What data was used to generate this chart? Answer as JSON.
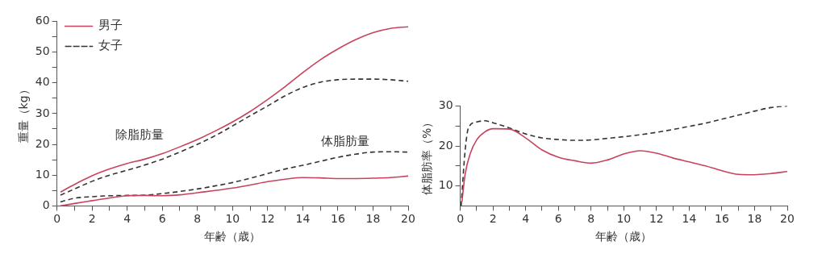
{
  "chart_data": [
    {
      "type": "line",
      "xlabel": "年齢（歳）",
      "ylabel": "重量（kg）",
      "xlim": [
        0,
        20
      ],
      "ylim": [
        0,
        60
      ],
      "xticks": [
        0,
        {
          "value": 1,
          "label": null
        },
        2,
        {
          "value": 3,
          "label": null
        },
        4,
        {
          "value": 5,
          "label": null
        },
        6,
        {
          "value": 7,
          "label": null
        },
        8,
        {
          "value": 9,
          "label": null
        },
        10,
        {
          "value": 11,
          "label": null
        },
        12,
        {
          "value": 13,
          "label": null
        },
        14,
        {
          "value": 15,
          "label": null
        },
        16,
        {
          "value": 17,
          "label": null
        },
        18,
        {
          "value": 19,
          "label": null
        },
        20
      ],
      "yticks": [
        0,
        {
          "value": 5,
          "label": null
        },
        10,
        {
          "value": 15,
          "label": null
        },
        20,
        {
          "value": 25,
          "label": null
        },
        30,
        {
          "value": 35,
          "label": null
        },
        40,
        {
          "value": 45,
          "label": null
        },
        50,
        {
          "value": 55,
          "label": null
        },
        60
      ],
      "grid": false,
      "legend": "top left",
      "marker": "none",
      "x": [
        0.2,
        1,
        2,
        3,
        4,
        5,
        6,
        7,
        8,
        9,
        10,
        11,
        12,
        13,
        14,
        15,
        16,
        17,
        18,
        19,
        20
      ],
      "series": [
        {
          "name": "男子",
          "color": "#c8435c",
          "line_style": "solid",
          "values": [
            4.5,
            7,
            9.8,
            12,
            13.8,
            15.2,
            17,
            19.2,
            21.6,
            24.3,
            27.3,
            30.7,
            34.6,
            38.8,
            43.3,
            47.5,
            51,
            54,
            56.3,
            57.7,
            58.2
          ]
        },
        {
          "name": "女子",
          "color": "#333333",
          "line_style": "dashed",
          "values": [
            3.5,
            5.5,
            8,
            10,
            11.6,
            13.3,
            15.2,
            17.5,
            20,
            22.8,
            26,
            29.3,
            32.5,
            35.8,
            38.5,
            40.2,
            41,
            41.2,
            41.2,
            41,
            40.5
          ]
        },
        {
          "color": "#c8435c",
          "line_style": "solid",
          "values": [
            0,
            0.8,
            1.7,
            2.6,
            3.3,
            3.4,
            3.3,
            3.6,
            4.3,
            5,
            5.8,
            6.8,
            7.9,
            8.7,
            9.2,
            9.1,
            8.9,
            8.9,
            9,
            9.2,
            9.7
          ]
        },
        {
          "color": "#333333",
          "line_style": "dashed",
          "values": [
            1.3,
            2.5,
            3,
            3.3,
            3.4,
            3.5,
            4,
            4.7,
            5.5,
            6.5,
            7.6,
            9,
            10.5,
            12,
            13.2,
            14.5,
            15.8,
            16.8,
            17.5,
            17.6,
            17.5
          ]
        }
      ],
      "annotations": [
        "除脂肪量",
        "体脂肪量"
      ]
    },
    {
      "type": "line",
      "xlabel": "年齢（歳）",
      "ylabel": "体脂肪率（%）",
      "xlim": [
        0,
        20
      ],
      "ylim": [
        5,
        30
      ],
      "xticks": [
        0,
        {
          "value": 1,
          "label": null
        },
        2,
        {
          "value": 3,
          "label": null
        },
        4,
        {
          "value": 5,
          "label": null
        },
        6,
        {
          "value": 7,
          "label": null
        },
        8,
        {
          "value": 9,
          "label": null
        },
        10,
        {
          "value": 11,
          "label": null
        },
        12,
        {
          "value": 13,
          "label": null
        },
        14,
        {
          "value": 15,
          "label": null
        },
        16,
        {
          "value": 17,
          "label": null
        },
        18,
        {
          "value": 19,
          "label": null
        },
        20
      ],
      "yticks": [
        10,
        {
          "value": 15,
          "label": null
        },
        20,
        {
          "value": 25,
          "label": null
        },
        30
      ],
      "grid": false,
      "marker": "none",
      "series": [
        {
          "color": "#c8435c",
          "line_style": "solid",
          "x": [
            0.1,
            0.3,
            0.6,
            1,
            1.5,
            2,
            3,
            4,
            5,
            6,
            7,
            8,
            9,
            10,
            11,
            12,
            13,
            14,
            15,
            16,
            17,
            18,
            19,
            20
          ],
          "values": [
            6,
            13,
            18,
            21.5,
            23.5,
            24.3,
            24.2,
            22,
            19,
            17.2,
            16.3,
            15.7,
            16.5,
            18,
            18.8,
            18.2,
            17,
            16,
            15,
            13.8,
            12.9,
            12.8,
            13.1,
            13.6
          ]
        },
        {
          "color": "#333333",
          "line_style": "dashed",
          "x": [
            0.05,
            0.3,
            0.5,
            1,
            1.5,
            2,
            3,
            4,
            5,
            6,
            7,
            8,
            9,
            10,
            11,
            12,
            13,
            14,
            15,
            16,
            17,
            18,
            19,
            20
          ],
          "values": [
            5,
            19,
            24.5,
            26,
            26.3,
            25.8,
            24.5,
            23,
            22,
            21.6,
            21.4,
            21.5,
            21.9,
            22.3,
            22.8,
            23.4,
            24.1,
            24.9,
            25.7,
            26.7,
            27.7,
            28.7,
            29.6,
            30
          ]
        }
      ]
    }
  ]
}
